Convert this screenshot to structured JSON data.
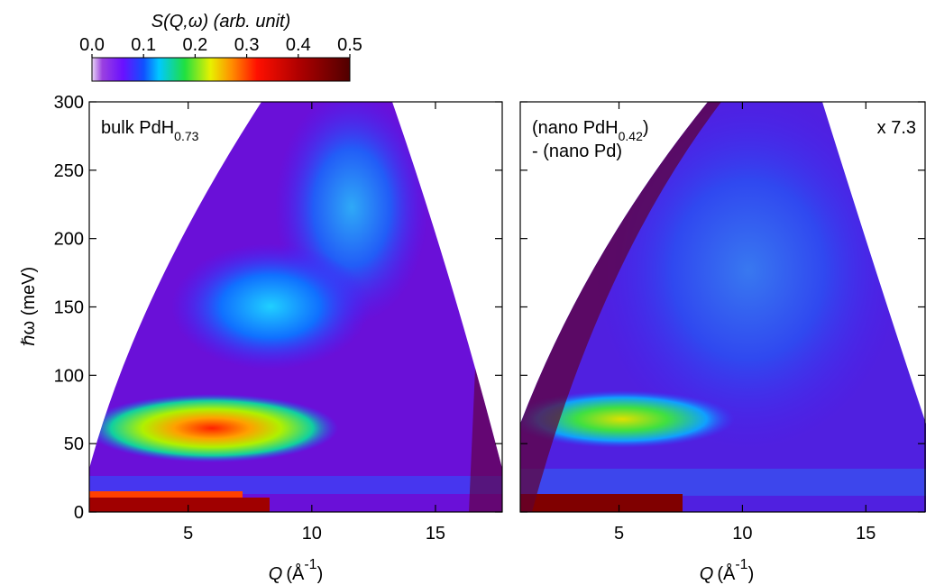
{
  "chart_data": [
    {
      "type": "heatmap",
      "xlim": [
        1,
        17.7
      ],
      "ylim": [
        0,
        300
      ],
      "xticks": [
        5,
        10,
        15
      ],
      "yticks": [
        0,
        50,
        100,
        150,
        200,
        250,
        300
      ],
      "y_label": "ℏω (meV)",
      "x_label": {
        "symbol": "Q",
        "unit": "(Å",
        "exponent": "-1",
        "close": ")"
      },
      "annotation": {
        "text": "bulk PdH",
        "subscript": "0.73"
      }
    },
    {
      "type": "heatmap",
      "xlim": [
        1,
        17.4
      ],
      "ylim": [
        0,
        300
      ],
      "xticks": [
        5,
        10,
        15
      ],
      "yticks": [
        0,
        50,
        100,
        150,
        200,
        250,
        300
      ],
      "x_label": {
        "symbol": "Q",
        "unit": "(Å",
        "exponent": "-1",
        "close": ")"
      },
      "annotation": {
        "text": "(nano PdH",
        "subscript": "0.42",
        "close": ")",
        "line2": "- (nano Pd)"
      },
      "scale_note": "x 7.3"
    },
    {
      "type": "colorbar",
      "label": "S(Q,ω) (arb. unit)",
      "lim": [
        0,
        0.5
      ],
      "ticks": [
        {
          "value": 0,
          "label": "0.0"
        },
        0.1,
        0.2,
        0.3,
        0.4,
        0.5
      ]
    }
  ]
}
